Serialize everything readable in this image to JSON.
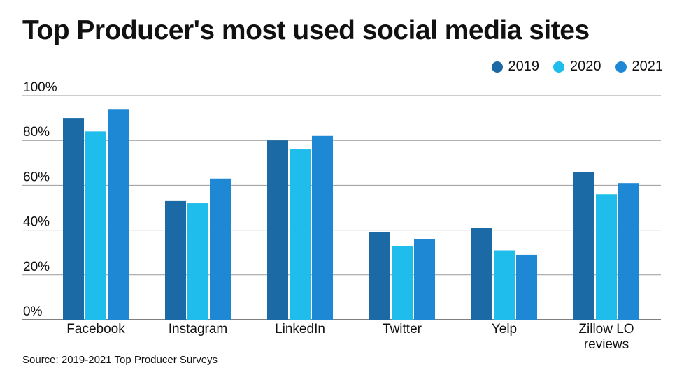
{
  "chart_data": {
    "type": "bar",
    "title": "Top Producer's most used social media sites",
    "categories": [
      "Facebook",
      "Instagram",
      "LinkedIn",
      "Twitter",
      "Yelp",
      "Zillow LO reviews"
    ],
    "category_lines": [
      [
        "Facebook"
      ],
      [
        "Instagram"
      ],
      [
        "LinkedIn"
      ],
      [
        "Twitter"
      ],
      [
        "Yelp"
      ],
      [
        "Zillow LO",
        "reviews"
      ]
    ],
    "series": [
      {
        "name": "2019",
        "color": "#1b6aa5",
        "values": [
          90,
          53,
          80,
          39,
          41,
          66
        ]
      },
      {
        "name": "2020",
        "color": "#1fbdec",
        "values": [
          84,
          52,
          76,
          33,
          31,
          56
        ]
      },
      {
        "name": "2021",
        "color": "#1e88d4",
        "values": [
          94,
          63,
          82,
          36,
          29,
          61
        ]
      }
    ],
    "ylim": [
      0,
      100
    ],
    "yticks": [
      0,
      20,
      40,
      60,
      80,
      100
    ],
    "ytick_labels": [
      "0%",
      "20%",
      "40%",
      "60%",
      "80%",
      "100%"
    ],
    "xlabel": "",
    "ylabel": "",
    "legend_position": "top-right",
    "grid": true,
    "source": "Source: 2019-2021 Top Producer Surveys"
  }
}
